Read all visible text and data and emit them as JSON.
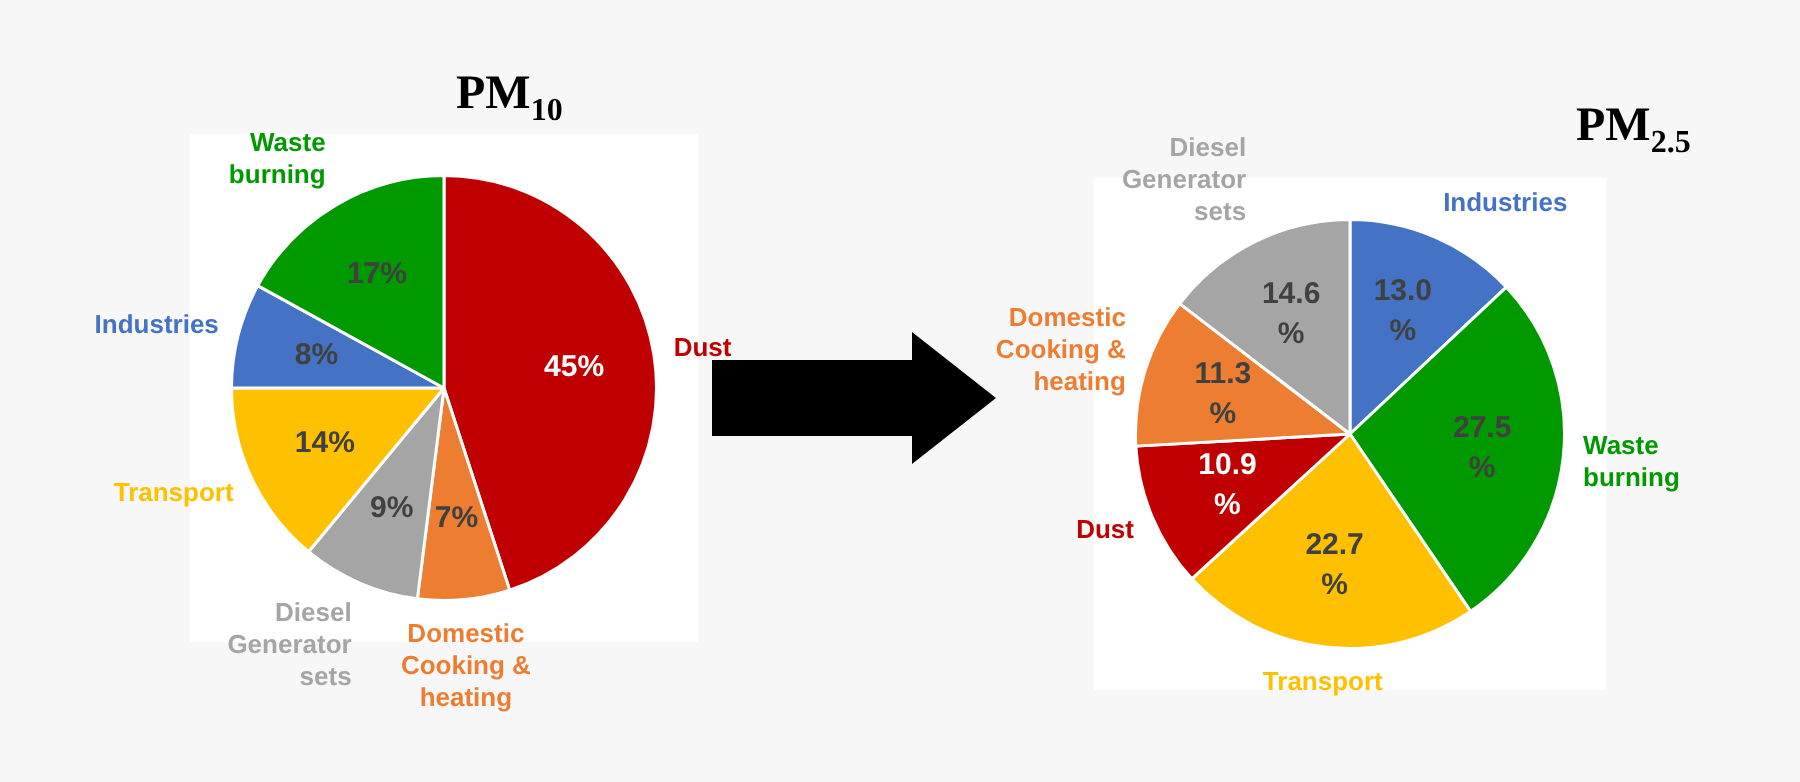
{
  "chart_data": [
    {
      "type": "pie",
      "title": "PM$_{10}$",
      "categories": [
        "Dust",
        "Domestic Cooking & heating",
        "Diesel Generator sets",
        "Transport",
        "Industries",
        "Waste burning"
      ],
      "values": [
        45,
        7,
        9,
        14,
        8,
        17
      ],
      "colors": [
        "#c00000",
        "#ed7d31",
        "#a5a5a5",
        "#ffc000",
        "#4472c4",
        "#009900"
      ],
      "data_labels": true,
      "value_labels": [
        "45%",
        "7%",
        "9%",
        "14%",
        "8%",
        "17%"
      ]
    },
    {
      "type": "pie",
      "title": "PM$_{2.5}$",
      "categories": [
        "Industries",
        "Waste burning",
        "Transport",
        "Dust",
        "Domestic Cooking & heating",
        "Diesel Generator sets"
      ],
      "values": [
        13.0,
        27.5,
        22.7,
        10.9,
        11.3,
        14.6
      ],
      "colors": [
        "#4472c4",
        "#009900",
        "#ffc000",
        "#c00000",
        "#ed7d31",
        "#a5a5a5"
      ],
      "data_labels": true,
      "value_labels": [
        "13.0 %",
        "27.5 %",
        "22.7 %",
        "10.9 %",
        "11.3 %",
        "14.6 %"
      ]
    }
  ]
}
